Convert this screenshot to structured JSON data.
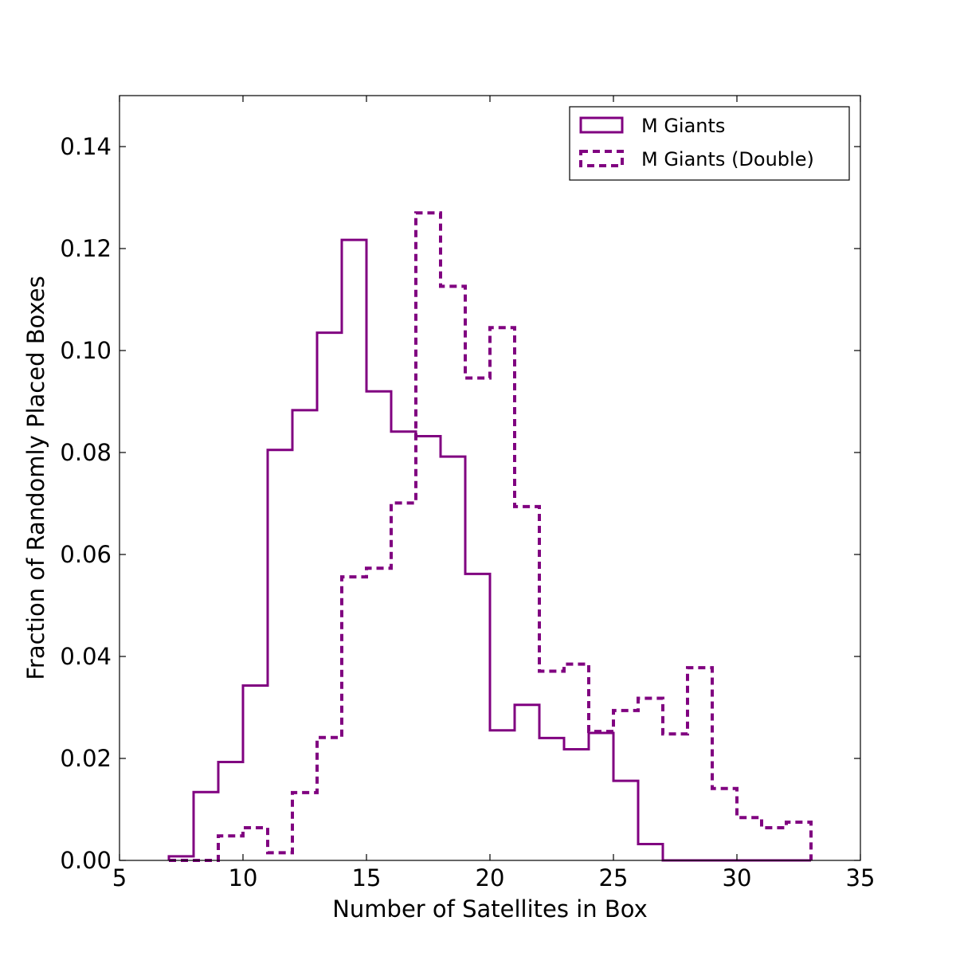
{
  "chart_data": {
    "type": "histogram-step",
    "xlabel": "Number of Satellites in Box",
    "ylabel": "Fraction of Randomly Placed Boxes",
    "xlim": [
      5,
      35
    ],
    "ylim": [
      0,
      0.15
    ],
    "xticks": [
      5,
      10,
      15,
      20,
      25,
      30,
      35
    ],
    "yticks": [
      0.0,
      0.02,
      0.04,
      0.06,
      0.08,
      0.1,
      0.12,
      0.14
    ],
    "xtick_labels": [
      "5",
      "10",
      "15",
      "20",
      "25",
      "30",
      "35"
    ],
    "ytick_labels": [
      "0.00",
      "0.02",
      "0.04",
      "0.06",
      "0.08",
      "0.10",
      "0.12",
      "0.14"
    ],
    "grid": false,
    "legend_position": "top-right",
    "series": [
      {
        "name": "M Giants",
        "line_style": "solid",
        "color": "#800080",
        "bin_edges": [
          7,
          8,
          9,
          10,
          11,
          12,
          13,
          14,
          15,
          16,
          17,
          18,
          19,
          20,
          21,
          22,
          23,
          24,
          25,
          26,
          27,
          28,
          29,
          30,
          31,
          32,
          33
        ],
        "values": [
          0.0008,
          0.0134,
          0.0193,
          0.0343,
          0.0805,
          0.0883,
          0.1035,
          0.1217,
          0.092,
          0.0841,
          0.0832,
          0.0792,
          0.0562,
          0.0255,
          0.0305,
          0.024,
          0.0218,
          0.025,
          0.0156,
          0.0032,
          0.0,
          0.0,
          0.0,
          0.0,
          0.0,
          0.0
        ]
      },
      {
        "name": "M Giants (Double)",
        "line_style": "dashed",
        "color": "#800080",
        "bin_edges": [
          7,
          8,
          9,
          10,
          11,
          12,
          13,
          14,
          15,
          16,
          17,
          18,
          19,
          20,
          21,
          22,
          23,
          24,
          25,
          26,
          27,
          28,
          29,
          30,
          31,
          32,
          33
        ],
        "values": [
          0.0,
          0.0,
          0.0048,
          0.0064,
          0.0015,
          0.0133,
          0.0241,
          0.0556,
          0.0573,
          0.0701,
          0.127,
          0.1126,
          0.0946,
          0.1045,
          0.0694,
          0.0371,
          0.0385,
          0.0253,
          0.0294,
          0.0318,
          0.0248,
          0.0378,
          0.0141,
          0.0084,
          0.0064,
          0.0075
        ]
      }
    ]
  }
}
